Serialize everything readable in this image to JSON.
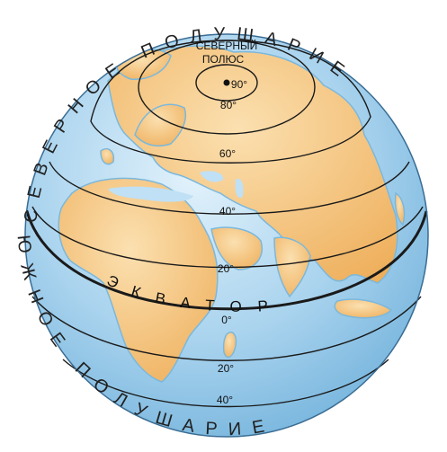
{
  "title_top": "СЕВЕРНОЕ ПОЛУШАРИЕ",
  "title_bottom": "ЮЖНОЕ ПОЛУШАРИЕ",
  "north_pole": {
    "line1": "СЕВЕРНЫЙ",
    "line2": "ПОЛЮС"
  },
  "equator_label": "ЭКВАТОР",
  "latitudes": [
    {
      "id": "lat-90",
      "label": "90°"
    },
    {
      "id": "lat-80",
      "label": "80°"
    },
    {
      "id": "lat-60",
      "label": "60°"
    },
    {
      "id": "lat-40n",
      "label": "40°"
    },
    {
      "id": "lat-20n",
      "label": "20°"
    },
    {
      "id": "lat-0",
      "label": "0°"
    },
    {
      "id": "lat-20s",
      "label": "20°"
    },
    {
      "id": "lat-40s",
      "label": "40°"
    }
  ],
  "colors": {
    "ocean": "#a9d3ee",
    "ocean_light": "#d6ecf9",
    "land": "#f2bb6e",
    "land_light": "#f8d9a4",
    "lines": "#1a1a1a",
    "coast": "#7ab8dd"
  }
}
